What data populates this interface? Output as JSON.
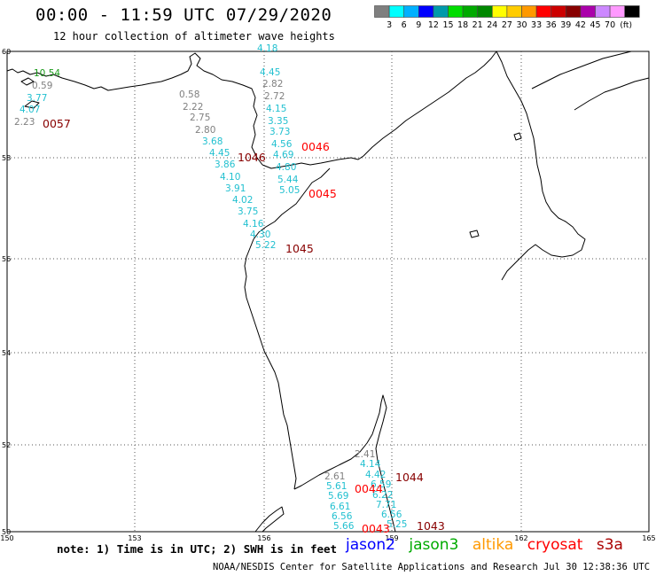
{
  "title": "00:00 - 11:59 UTC 07/29/2020",
  "subtitle": "12 hour collection of altimeter wave heights",
  "scale": {
    "colors": [
      "#7f7f7f",
      "#00ffff",
      "#00b0ff",
      "#0000ff",
      "#0099aa",
      "#00dd00",
      "#00aa00",
      "#008800",
      "#ffff00",
      "#ffcc00",
      "#ff9900",
      "#ff0000",
      "#cc0000",
      "#880000",
      "#aa00aa",
      "#cc88ff",
      "#ff99ff",
      "#000000"
    ],
    "labels": [
      "3",
      "6",
      "9",
      "12",
      "15",
      "18",
      "21",
      "24",
      "27",
      "30",
      "33",
      "36",
      "39",
      "42",
      "45",
      "70"
    ],
    "unit": "(ft)"
  },
  "axes": {
    "lat_labels": [
      "60",
      "58",
      "56",
      "54",
      "52",
      "50"
    ],
    "lon_labels": [
      "150",
      "153",
      "156",
      "159",
      "162",
      "165"
    ]
  },
  "wave_points": [
    {
      "text": "4.18",
      "color": "#22c0d0"
    },
    {
      "text": "4.45",
      "color": "#22c0d0"
    },
    {
      "text": "2.82",
      "color": "#808080"
    },
    {
      "text": "2.72",
      "color": "#808080"
    },
    {
      "text": "4.15",
      "color": "#22c0d0"
    },
    {
      "text": "3.35",
      "color": "#22c0d0"
    },
    {
      "text": "3.73",
      "color": "#22c0d0"
    },
    {
      "text": "4.56",
      "color": "#22c0d0"
    },
    {
      "text": "4.69",
      "color": "#22c0d0"
    },
    {
      "text": "4.80",
      "color": "#22c0d0"
    },
    {
      "text": "5.44",
      "color": "#22c0d0"
    },
    {
      "text": "5.05",
      "color": "#22c0d0"
    },
    {
      "text": "0.58",
      "color": "#808080"
    },
    {
      "text": "2.22",
      "color": "#808080"
    },
    {
      "text": "2.75",
      "color": "#808080"
    },
    {
      "text": "2.80",
      "color": "#808080"
    },
    {
      "text": "3.68",
      "color": "#22c0d0"
    },
    {
      "text": "4.45",
      "color": "#22c0d0"
    },
    {
      "text": "3.86",
      "color": "#22c0d0"
    },
    {
      "text": "4.10",
      "color": "#22c0d0"
    },
    {
      "text": "3.91",
      "color": "#22c0d0"
    },
    {
      "text": "4.02",
      "color": "#22c0d0"
    },
    {
      "text": "3.75",
      "color": "#22c0d0"
    },
    {
      "text": "4.16",
      "color": "#22c0d0"
    },
    {
      "text": "4.30",
      "color": "#22c0d0"
    },
    {
      "text": "5.22",
      "color": "#22c0d0"
    },
    {
      "text": "10.54",
      "color": "#1a9a1a"
    },
    {
      "text": "0.59",
      "color": "#808080"
    },
    {
      "text": "3.77",
      "color": "#22c0d0"
    },
    {
      "text": "4.07",
      "color": "#22c0d0"
    },
    {
      "text": "2.23",
      "color": "#808080"
    },
    {
      "text": "2.41",
      "color": "#808080"
    },
    {
      "text": "4.14",
      "color": "#22c0d0"
    },
    {
      "text": "4.42",
      "color": "#22c0d0"
    },
    {
      "text": "2.61",
      "color": "#808080"
    },
    {
      "text": "5.61",
      "color": "#22c0d0"
    },
    {
      "text": "6.59",
      "color": "#22c0d0"
    },
    {
      "text": "6.22",
      "color": "#22c0d0"
    },
    {
      "text": "5.69",
      "color": "#22c0d0"
    },
    {
      "text": "7.71",
      "color": "#22c0d0"
    },
    {
      "text": "6.61",
      "color": "#22c0d0"
    },
    {
      "text": "6.56",
      "color": "#22c0d0"
    },
    {
      "text": "6.56",
      "color": "#22c0d0"
    },
    {
      "text": "5.66",
      "color": "#22c0d0"
    },
    {
      "text": "5.25",
      "color": "#22c0d0"
    }
  ],
  "time_labels": [
    {
      "text": "0057",
      "color": "#880000"
    },
    {
      "text": "1046",
      "color": "#880000"
    },
    {
      "text": "0046",
      "color": "#ff0000"
    },
    {
      "text": "0045",
      "color": "#ff0000"
    },
    {
      "text": "1045",
      "color": "#880000"
    },
    {
      "text": "1044",
      "color": "#880000"
    },
    {
      "text": "0044",
      "color": "#ff0000"
    },
    {
      "text": "0043",
      "color": "#ff0000"
    },
    {
      "text": "1043",
      "color": "#880000"
    }
  ],
  "note": "note: 1) Time is in UTC; 2) SWH is in feet",
  "satellites": [
    {
      "name": "jason2",
      "color": "#0000ff"
    },
    {
      "name": "jason3",
      "color": "#00aa00"
    },
    {
      "name": "altika",
      "color": "#ff9900"
    },
    {
      "name": "cryosat",
      "color": "#ff0000"
    },
    {
      "name": "s3a",
      "color": "#aa0000"
    }
  ],
  "credit": "NOAA/NESDIS Center for Satellite Applications and Research   Jul 30 12:38:36 UTC 2020"
}
